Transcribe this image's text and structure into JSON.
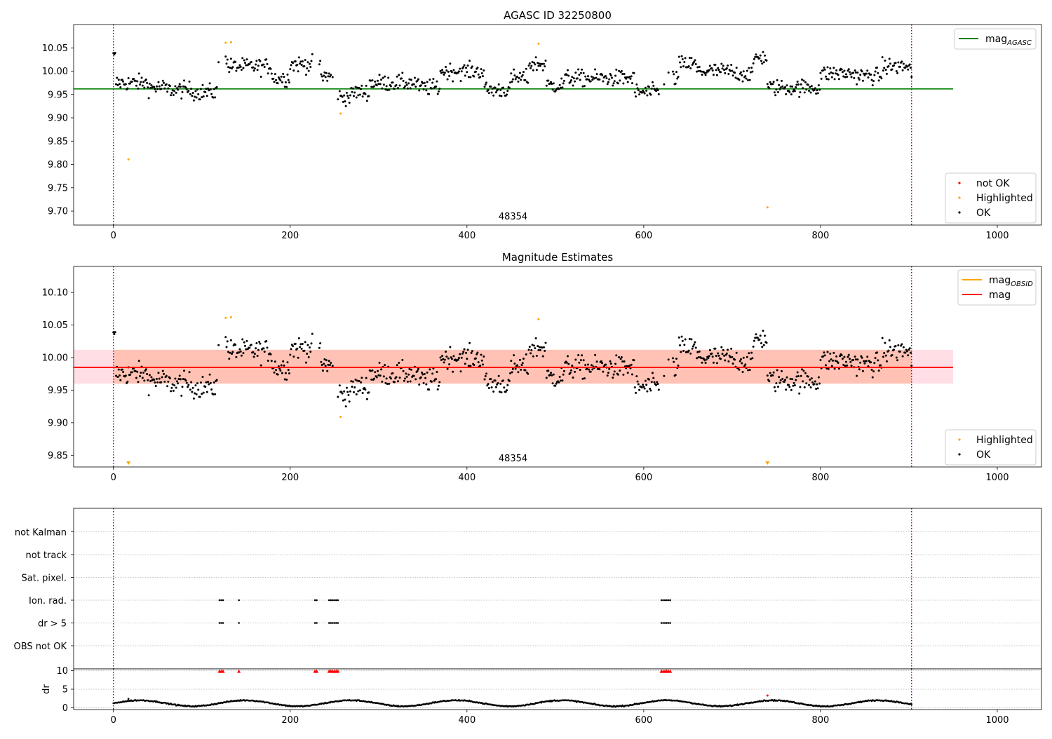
{
  "colors": {
    "agasc_line": "#008000",
    "mean_line": "#ff0000",
    "obsid_line": "#ffa500",
    "band_outer": "#ffc0cb",
    "band_inner": "#ffa07a",
    "ok": "#000000",
    "highlighted": "#ffa500",
    "not_ok": "#ff0000",
    "obs_divider": "#800080",
    "grid": "#b0b0b0"
  },
  "chart_data": [
    {
      "type": "scatter",
      "title": "AGASC ID 32250800",
      "xlim": [
        -45,
        1050
      ],
      "ylim": [
        9.67,
        10.1
      ],
      "x_ticks": [
        "0",
        "200",
        "400",
        "600",
        "800",
        "1000"
      ],
      "x_tick_values": [
        0,
        200,
        400,
        600,
        800,
        1000
      ],
      "y_ticks": [
        "9.70",
        "9.75",
        "9.80",
        "9.85",
        "9.90",
        "9.95",
        "10.00",
        "10.05"
      ],
      "y_tick_values": [
        9.7,
        9.75,
        9.8,
        9.85,
        9.9,
        9.95,
        10.0,
        10.05
      ],
      "mag_agasc": 9.962,
      "agasc_line_x": [
        -45,
        950
      ],
      "obs_boundaries": [
        0,
        903
      ],
      "obsid_label": "48354",
      "obsid_label_x": 450,
      "legend_top": {
        "placement": "top-right",
        "entries": [
          {
            "label": "mag",
            "sub": "AGASC"
          }
        ]
      },
      "legend_bottom": {
        "placement": "bottom-right",
        "entries": [
          {
            "label": "not OK"
          },
          {
            "label": "Highlighted"
          },
          {
            "label": "OK"
          }
        ]
      },
      "highlighted_points": [
        [
          17,
          9.811
        ],
        [
          127,
          10.061
        ],
        [
          133,
          10.062
        ],
        [
          257,
          9.909
        ],
        [
          481,
          10.059
        ],
        [
          740,
          9.708
        ]
      ]
    },
    {
      "type": "scatter",
      "title": "Magnitude Estimates",
      "xlim": [
        -45,
        1050
      ],
      "ylim": [
        9.832,
        10.14
      ],
      "x_ticks": [
        "0",
        "200",
        "400",
        "600",
        "800",
        "1000"
      ],
      "x_tick_values": [
        0,
        200,
        400,
        600,
        800,
        1000
      ],
      "y_ticks": [
        "9.85",
        "9.90",
        "9.95",
        "10.00",
        "10.05",
        "10.10"
      ],
      "y_tick_values": [
        9.85,
        9.9,
        9.95,
        10.0,
        10.05,
        10.1
      ],
      "mag_mean": 9.985,
      "band_outer": [
        9.96,
        10.012
      ],
      "band_inner": [
        9.96,
        10.012
      ],
      "band_inner_x": [
        0,
        903
      ],
      "band_outer_x": [
        -45,
        950
      ],
      "obs_boundaries": [
        0,
        903
      ],
      "obsid_label": "48354",
      "obsid_label_x": 450,
      "legend_top": {
        "placement": "top-right",
        "entries": [
          {
            "label": "mag",
            "sub": "OBSID"
          },
          {
            "label": "mag"
          }
        ]
      },
      "legend_bottom": {
        "placement": "bottom-right",
        "entries": [
          {
            "label": "Highlighted"
          },
          {
            "label": "OK"
          }
        ]
      },
      "highlighted_points": [
        [
          127,
          10.061
        ],
        [
          133,
          10.062
        ],
        [
          257,
          9.909
        ],
        [
          481,
          10.059
        ]
      ],
      "clipped_low_markers": [
        17,
        740
      ]
    },
    {
      "type": "scatter",
      "title": "",
      "xlim": [
        -45,
        1050
      ],
      "categories": [
        "not Kalman",
        "not track",
        "Sat. pixel.",
        "Ion. rad.",
        "dr > 5",
        "OBS not OK"
      ],
      "flag_points": {
        "Ion. rad.": [
          120,
          122,
          124,
          142,
          228,
          230,
          244,
          246,
          248,
          250,
          252,
          254,
          620,
          622,
          624,
          626,
          628,
          630
        ],
        "dr > 5": [
          120,
          122,
          124,
          142,
          228,
          230,
          244,
          246,
          248,
          250,
          252,
          254,
          620,
          622,
          624,
          626,
          628,
          630
        ]
      },
      "obs_boundaries": [
        0,
        903
      ]
    },
    {
      "type": "scatter",
      "title": "",
      "ylabel": "dr",
      "xlim": [
        -45,
        1050
      ],
      "ylim": [
        -0.5,
        10.5
      ],
      "x_ticks": [
        "0",
        "200",
        "400",
        "600",
        "800",
        "1000"
      ],
      "x_tick_values": [
        0,
        200,
        400,
        600,
        800,
        1000
      ],
      "y_ticks": [
        "0",
        "5",
        "10"
      ],
      "y_tick_values": [
        0,
        5,
        10
      ],
      "clipped_high_x": [
        120,
        122,
        124,
        142,
        228,
        230,
        244,
        246,
        248,
        250,
        252,
        254,
        620,
        622,
        624,
        626,
        628,
        630
      ],
      "red_points": [
        [
          740,
          3.3
        ]
      ],
      "outlier_points": [
        [
          17,
          2.4
        ]
      ],
      "obs_boundaries": [
        0,
        903
      ]
    }
  ]
}
